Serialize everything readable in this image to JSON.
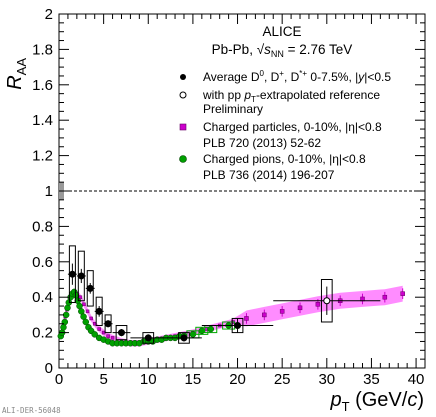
{
  "chart_data": {
    "type": "scatter",
    "title": "ALICE",
    "subtitle": "Pb-Pb, √s_NN = 2.76 TeV",
    "subtitle_parts": {
      "system": "Pb-Pb, ",
      "sqrt": "√",
      "s": "s",
      "sub": "NN",
      "energy": " = 2.76 TeV"
    },
    "xlabel": "p_T (GeV/c)",
    "xlabel_parts": {
      "p": "p",
      "sub": "T",
      "rest": " (GeV/",
      "c": "c",
      "close": ")"
    },
    "ylabel": "R_AA",
    "ylabel_parts": {
      "r": "R",
      "sub": "AA"
    },
    "xlim": [
      0,
      41
    ],
    "ylim": [
      0,
      2
    ],
    "x_ticks": [
      "0",
      "5",
      "10",
      "15",
      "20",
      "25",
      "30",
      "35",
      "40"
    ],
    "y_ticks": [
      "0",
      "0.2",
      "0.4",
      "0.6",
      "0.8",
      "1",
      "1.2",
      "1.4",
      "1.6",
      "1.8",
      "2"
    ],
    "reference_line": 1,
    "grid": false,
    "legend_placement": "top-right",
    "watermark": "ALI-DER-56048",
    "legend": [
      {
        "marker": "filled-circle",
        "color": "#000000",
        "line1_parts": [
          "Average D",
          "0",
          ", D",
          "+",
          ", D",
          "*+",
          " 0-7.5%, |",
          "y",
          "|<0.5"
        ]
      },
      {
        "marker": "open-circle",
        "color": "#000000",
        "line1_parts": [
          "with pp ",
          "p",
          "T",
          "-extrapolated reference"
        ],
        "line2": "Preliminary"
      },
      {
        "marker": "square",
        "color": "#cc00cc",
        "line1": "Charged particles, 0-10%, |η|<0.8",
        "line2": "PLB 720 (2013) 52-62"
      },
      {
        "marker": "circle",
        "color": "#009900",
        "line1": "Charged pions, 0-10%, |η|<0.8",
        "line2": "PLB 736 (2014) 196-207"
      }
    ],
    "series": [
      {
        "name": "Average D0, D+, D*+ 0-7.5%, |y|<0.5",
        "color": "#000000",
        "points": [
          {
            "x": 1.5,
            "y": 0.53,
            "xerr": 0.5,
            "stat": 0.06,
            "syst": 0.16
          },
          {
            "x": 2.5,
            "y": 0.52,
            "xerr": 0.5,
            "stat": 0.04,
            "syst": 0.14
          },
          {
            "x": 3.5,
            "y": 0.45,
            "xerr": 0.5,
            "stat": 0.03,
            "syst": 0.1
          },
          {
            "x": 4.5,
            "y": 0.32,
            "xerr": 0.5,
            "stat": 0.03,
            "syst": 0.08
          },
          {
            "x": 5.5,
            "y": 0.25,
            "xerr": 0.5,
            "stat": 0.02,
            "syst": 0.05
          },
          {
            "x": 7.0,
            "y": 0.2,
            "xerr": 1.0,
            "stat": 0.02,
            "syst": 0.04
          },
          {
            "x": 10.0,
            "y": 0.17,
            "xerr": 2.0,
            "stat": 0.02,
            "syst": 0.03
          },
          {
            "x": 14.0,
            "y": 0.17,
            "xerr": 2.0,
            "stat": 0.02,
            "syst": 0.03
          },
          {
            "x": 20.0,
            "y": 0.24,
            "xerr": 4.0,
            "stat": 0.04,
            "syst": 0.04
          }
        ]
      },
      {
        "name": "with pp pT-extrapolated reference",
        "color": "#000000",
        "points": [
          {
            "x": 30.0,
            "y": 0.38,
            "xerr": 6.0,
            "stat": 0.08,
            "syst": 0.12
          }
        ]
      },
      {
        "name": "Charged particles, 0-10%, |η|<0.8",
        "color": "#cc00cc",
        "points": [
          {
            "x": 0.3,
            "y": 0.2
          },
          {
            "x": 0.5,
            "y": 0.24
          },
          {
            "x": 0.7,
            "y": 0.29
          },
          {
            "x": 0.9,
            "y": 0.33
          },
          {
            "x": 1.1,
            "y": 0.37
          },
          {
            "x": 1.4,
            "y": 0.4
          },
          {
            "x": 1.7,
            "y": 0.42
          },
          {
            "x": 2.0,
            "y": 0.42
          },
          {
            "x": 2.4,
            "y": 0.4
          },
          {
            "x": 2.8,
            "y": 0.36
          },
          {
            "x": 3.2,
            "y": 0.32
          },
          {
            "x": 3.6,
            "y": 0.28
          },
          {
            "x": 4.0,
            "y": 0.25
          },
          {
            "x": 4.5,
            "y": 0.22
          },
          {
            "x": 5.0,
            "y": 0.2
          },
          {
            "x": 5.5,
            "y": 0.18
          },
          {
            "x": 6.0,
            "y": 0.17
          },
          {
            "x": 7.0,
            "y": 0.15
          },
          {
            "x": 8.0,
            "y": 0.14
          },
          {
            "x": 9.0,
            "y": 0.14
          },
          {
            "x": 10.0,
            "y": 0.15
          },
          {
            "x": 11.0,
            "y": 0.16
          },
          {
            "x": 12.0,
            "y": 0.17
          },
          {
            "x": 13.0,
            "y": 0.18
          },
          {
            "x": 14.0,
            "y": 0.19
          },
          {
            "x": 15.0,
            "y": 0.2
          },
          {
            "x": 16.5,
            "y": 0.22
          },
          {
            "x": 18.0,
            "y": 0.24
          },
          {
            "x": 19.5,
            "y": 0.26
          },
          {
            "x": 21.0,
            "y": 0.28
          },
          {
            "x": 23.0,
            "y": 0.3
          },
          {
            "x": 25.0,
            "y": 0.32
          },
          {
            "x": 27.0,
            "y": 0.34
          },
          {
            "x": 29.0,
            "y": 0.36
          },
          {
            "x": 31.5,
            "y": 0.38
          },
          {
            "x": 34.0,
            "y": 0.39
          },
          {
            "x": 36.5,
            "y": 0.4
          },
          {
            "x": 38.5,
            "y": 0.42
          }
        ]
      },
      {
        "name": "Charged pions, 0-10%, |η|<0.8",
        "color": "#009900",
        "points": [
          {
            "x": 0.2,
            "y": 0.18
          },
          {
            "x": 0.35,
            "y": 0.2
          },
          {
            "x": 0.5,
            "y": 0.23
          },
          {
            "x": 0.65,
            "y": 0.26
          },
          {
            "x": 0.8,
            "y": 0.3
          },
          {
            "x": 0.95,
            "y": 0.34
          },
          {
            "x": 1.1,
            "y": 0.37
          },
          {
            "x": 1.3,
            "y": 0.4
          },
          {
            "x": 1.5,
            "y": 0.42
          },
          {
            "x": 1.7,
            "y": 0.43
          },
          {
            "x": 1.9,
            "y": 0.41
          },
          {
            "x": 2.1,
            "y": 0.38
          },
          {
            "x": 2.3,
            "y": 0.35
          },
          {
            "x": 2.5,
            "y": 0.32
          },
          {
            "x": 2.75,
            "y": 0.29
          },
          {
            "x": 3.0,
            "y": 0.26
          },
          {
            "x": 3.3,
            "y": 0.23
          },
          {
            "x": 3.6,
            "y": 0.21
          },
          {
            "x": 4.0,
            "y": 0.19
          },
          {
            "x": 4.5,
            "y": 0.17
          },
          {
            "x": 5.0,
            "y": 0.16
          },
          {
            "x": 5.5,
            "y": 0.15
          },
          {
            "x": 6.0,
            "y": 0.14
          },
          {
            "x": 6.5,
            "y": 0.14
          },
          {
            "x": 7.0,
            "y": 0.14
          },
          {
            "x": 7.5,
            "y": 0.14
          },
          {
            "x": 8.0,
            "y": 0.14
          },
          {
            "x": 8.5,
            "y": 0.14
          },
          {
            "x": 9.0,
            "y": 0.14
          },
          {
            "x": 9.5,
            "y": 0.15
          },
          {
            "x": 10.0,
            "y": 0.15
          },
          {
            "x": 10.5,
            "y": 0.15
          },
          {
            "x": 11.0,
            "y": 0.16
          },
          {
            "x": 11.5,
            "y": 0.16
          },
          {
            "x": 12.0,
            "y": 0.17
          },
          {
            "x": 12.5,
            "y": 0.17
          },
          {
            "x": 13.0,
            "y": 0.17
          },
          {
            "x": 13.5,
            "y": 0.18
          },
          {
            "x": 14.0,
            "y": 0.18
          },
          {
            "x": 15.0,
            "y": 0.19
          },
          {
            "x": 16.0,
            "y": 0.21
          },
          {
            "x": 17.0,
            "y": 0.22
          },
          {
            "x": 19.0,
            "y": 0.24
          }
        ]
      }
    ]
  }
}
